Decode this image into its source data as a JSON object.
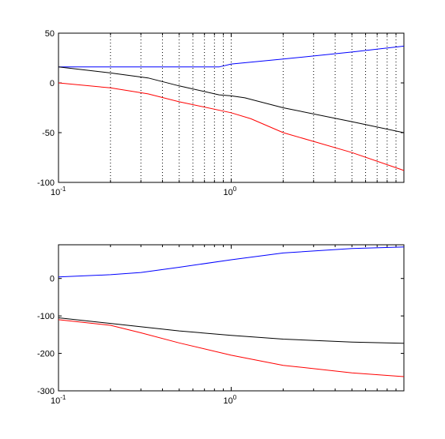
{
  "chart_data": [
    {
      "type": "line",
      "title": "",
      "xlabel": "",
      "ylabel": "",
      "xscale": "log",
      "xlim": [
        0.1,
        10
      ],
      "ylim": [
        -100,
        50
      ],
      "grid": "x-only dotted",
      "x_tick_labels": [
        {
          "base": "10",
          "exp": "-1",
          "value": 0.1
        },
        {
          "base": "10",
          "exp": "0",
          "value": 1
        }
      ],
      "y_ticks": [
        50,
        0,
        -50,
        -100
      ],
      "series": [
        {
          "color": "#0000ff",
          "x": [
            0.1,
            0.2,
            0.5,
            0.85,
            1.0,
            2.0,
            5.0,
            10.0
          ],
          "y": [
            16,
            16,
            16,
            16,
            19,
            24,
            31,
            37
          ]
        },
        {
          "color": "#000000",
          "x": [
            0.1,
            0.2,
            0.33,
            0.5,
            0.85,
            1.0,
            1.2,
            2.0,
            5.0,
            10.0
          ],
          "y": [
            16,
            10,
            5,
            -3,
            -12,
            -13,
            -15,
            -25,
            -39,
            -50
          ]
        },
        {
          "color": "#ff0000",
          "x": [
            0.1,
            0.2,
            0.33,
            0.5,
            1.0,
            1.3,
            2.0,
            5.0,
            10.0
          ],
          "y": [
            0,
            -5,
            -11,
            -19,
            -30,
            -36,
            -50,
            -70,
            -88
          ]
        }
      ]
    },
    {
      "type": "line",
      "title": "",
      "xlabel": "",
      "ylabel": "",
      "xscale": "log",
      "xlim": [
        0.1,
        10
      ],
      "ylim": [
        -300,
        90
      ],
      "grid": "off",
      "x_tick_labels": [
        {
          "base": "10",
          "exp": "-1",
          "value": 0.1
        },
        {
          "base": "10",
          "exp": "0",
          "value": 1
        }
      ],
      "y_ticks": [
        0,
        -100,
        -200,
        -300
      ],
      "series": [
        {
          "color": "#0000ff",
          "x": [
            0.1,
            0.2,
            0.3,
            0.5,
            1.0,
            2.0,
            5.0,
            10.0
          ],
          "y": [
            4,
            10,
            16,
            30,
            50,
            68,
            80,
            84
          ]
        },
        {
          "color": "#000000",
          "x": [
            0.1,
            0.2,
            0.5,
            1.0,
            2.0,
            5.0,
            10.0
          ],
          "y": [
            -105,
            -120,
            -140,
            -152,
            -162,
            -170,
            -173
          ]
        },
        {
          "color": "#ff0000",
          "x": [
            0.1,
            0.2,
            0.3,
            0.5,
            1.0,
            2.0,
            5.0,
            10.0
          ],
          "y": [
            -110,
            -125,
            -145,
            -172,
            -205,
            -232,
            -252,
            -262
          ]
        }
      ]
    }
  ]
}
